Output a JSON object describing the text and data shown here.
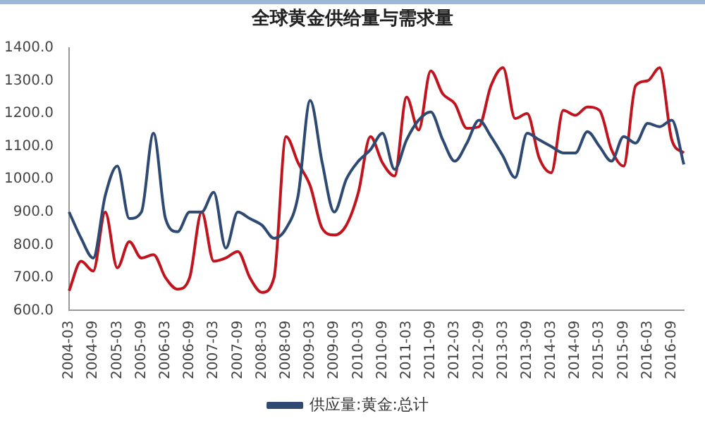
{
  "chart_data": {
    "type": "line",
    "title": "全球黄金供给量与需求量",
    "categories": [
      "2004-03",
      null,
      "2004-09",
      null,
      "2005-03",
      null,
      "2005-09",
      null,
      "2006-03",
      null,
      "2006-09",
      null,
      "2007-03",
      null,
      "2007-09",
      null,
      "2008-03",
      null,
      "2008-09",
      null,
      "2009-03",
      null,
      "2009-09",
      null,
      "2010-03",
      null,
      "2010-09",
      null,
      "2011-03",
      null,
      "2011-09",
      null,
      "2012-03",
      null,
      "2012-09",
      null,
      "2013-03",
      null,
      "2013-09",
      null,
      "2014-03",
      null,
      "2014-09",
      null,
      "2015-03",
      null,
      "2015-09",
      null,
      "2016-03",
      null,
      "2016-09",
      null
    ],
    "series": [
      {
        "name": "供应量:黄金:总计",
        "color": "#2e4a72",
        "values": [
          900,
          820,
          760,
          950,
          1040,
          880,
          900,
          1140,
          880,
          840,
          900,
          900,
          960,
          790,
          900,
          880,
          860,
          820,
          850,
          950,
          1240,
          1050,
          900,
          1000,
          1055,
          1090,
          1140,
          1030,
          1120,
          1180,
          1205,
          1120,
          1055,
          1110,
          1180,
          1130,
          1070,
          1005,
          1140,
          1120,
          1100,
          1080,
          1080,
          1145,
          1100,
          1055,
          1130,
          1110,
          1170,
          1160,
          1180,
          1045
        ]
      },
      {
        "color": "#c0151f",
        "values": [
          660,
          750,
          720,
          900,
          730,
          810,
          760,
          770,
          700,
          665,
          700,
          900,
          750,
          760,
          780,
          700,
          655,
          700,
          1130,
          1050,
          980,
          850,
          830,
          860,
          960,
          1130,
          1050,
          1010,
          1250,
          1150,
          1330,
          1260,
          1230,
          1155,
          1160,
          1285,
          1340,
          1185,
          1200,
          1065,
          1020,
          1210,
          1195,
          1220,
          1210,
          1090,
          1040,
          1285,
          1300,
          1340,
          1120,
          1080
        ]
      }
    ],
    "ylim": [
      600,
      1400
    ],
    "yticks": [
      {
        "value": 600,
        "label": "600.0"
      },
      {
        "value": 700,
        "label": "700.0"
      },
      {
        "value": 800,
        "label": "800.0"
      },
      {
        "value": 900,
        "label": "900.0"
      },
      {
        "value": 1000,
        "label": "1000.0"
      },
      {
        "value": 1100,
        "label": "1100.0"
      },
      {
        "value": 1200,
        "label": "1200.0"
      },
      {
        "value": 1300,
        "label": "1300.0"
      },
      {
        "value": 1400,
        "label": "1400.0"
      }
    ],
    "legend": "bottom",
    "marker": "none",
    "line_style": "solid"
  }
}
